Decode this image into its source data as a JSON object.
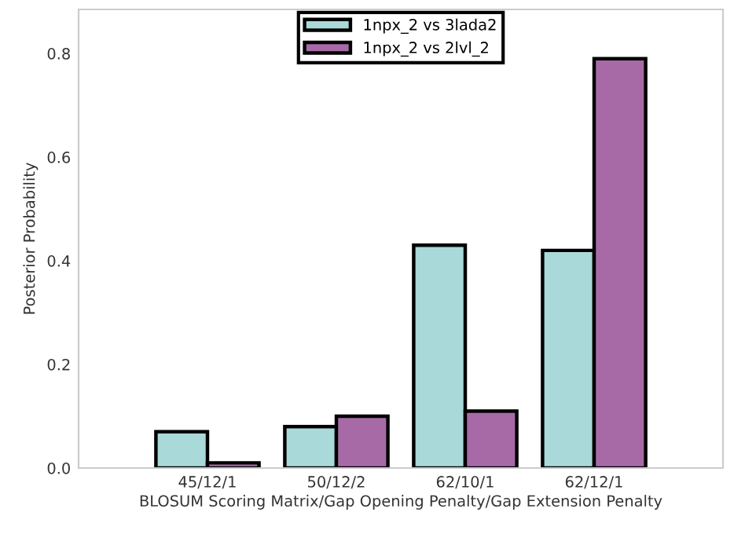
{
  "chart_data": {
    "type": "bar",
    "xlabel": "BLOSUM Scoring Matrix/Gap Opening Penalty/Gap Extension Penalty",
    "ylabel": "Posterior Probability",
    "categories": [
      "45/12/1",
      "50/12/2",
      "62/10/1",
      "62/12/1"
    ],
    "series": [
      {
        "name": "1npx_2 vs 3lada2",
        "color": "#a9d9d9",
        "values": [
          0.07,
          0.08,
          0.43,
          0.42
        ]
      },
      {
        "name": "1npx_2 vs 2lvl_2",
        "color": "#a76aa7",
        "values": [
          0.01,
          0.1,
          0.11,
          0.79
        ]
      }
    ],
    "ylim": [
      0,
      0.885
    ],
    "yticks": [
      {
        "value": 0,
        "label": "0.0"
      },
      0.2,
      0.4,
      0.6,
      0.8
    ],
    "grid": false,
    "legend": "top"
  }
}
